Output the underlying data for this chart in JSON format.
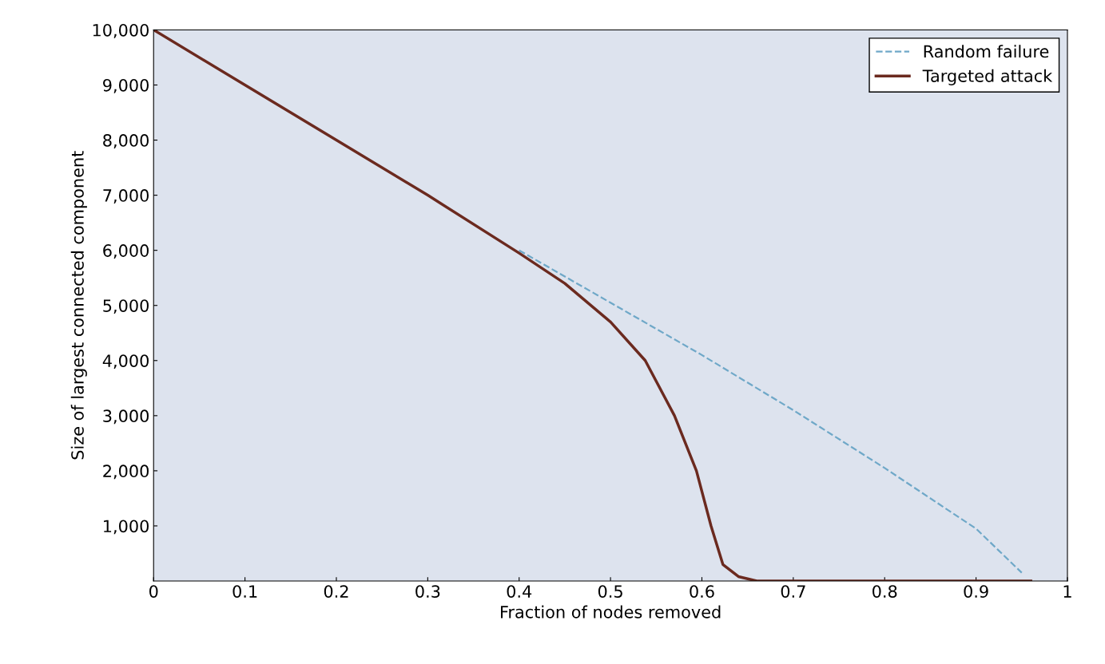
{
  "chart_data": {
    "type": "line",
    "xlabel": "Fraction of nodes removed",
    "ylabel": "Size of largest connected component",
    "xlim": [
      0,
      1
    ],
    "ylim": [
      0,
      10000
    ],
    "xticks": [
      0,
      0.1,
      0.2,
      0.3,
      0.4,
      0.5,
      0.6,
      0.7,
      0.8,
      0.9,
      1
    ],
    "yticks": [
      {
        "value": 1000,
        "label": "1,000"
      },
      {
        "value": 2000,
        "label": "2,000"
      },
      {
        "value": 3000,
        "label": "3,000"
      },
      {
        "value": 4000,
        "label": "4,000"
      },
      {
        "value": 5000,
        "label": "5,000"
      },
      {
        "value": 6000,
        "label": "6,000"
      },
      {
        "value": 7000,
        "label": "7,000"
      },
      {
        "value": 8000,
        "label": "8,000"
      },
      {
        "value": 9000,
        "label": "9,000"
      },
      {
        "value": 10000,
        "label": "10,000"
      }
    ],
    "grid": false,
    "legend": "top right",
    "marker": "none",
    "series": [
      {
        "name": "Random failure",
        "color": "#6fa8c8",
        "line_style": "dashed",
        "x": [
          0.4,
          0.5,
          0.6,
          0.7,
          0.8,
          0.9,
          0.95
        ],
        "values": [
          6000,
          5050,
          4100,
          3100,
          2050,
          950,
          150
        ]
      },
      {
        "name": "Targeted attack",
        "color": "#6b2a1f",
        "line_style": "solid",
        "x": [
          0,
          0.1,
          0.2,
          0.3,
          0.4,
          0.45,
          0.5,
          0.538,
          0.57,
          0.594,
          0.61,
          0.623,
          0.64,
          0.66,
          0.7,
          0.8,
          0.96
        ],
        "values": [
          10000,
          9000,
          8000,
          7000,
          5950,
          5400,
          4700,
          4000,
          3000,
          2000,
          1000,
          300,
          80,
          0,
          0,
          0,
          0
        ]
      }
    ]
  }
}
